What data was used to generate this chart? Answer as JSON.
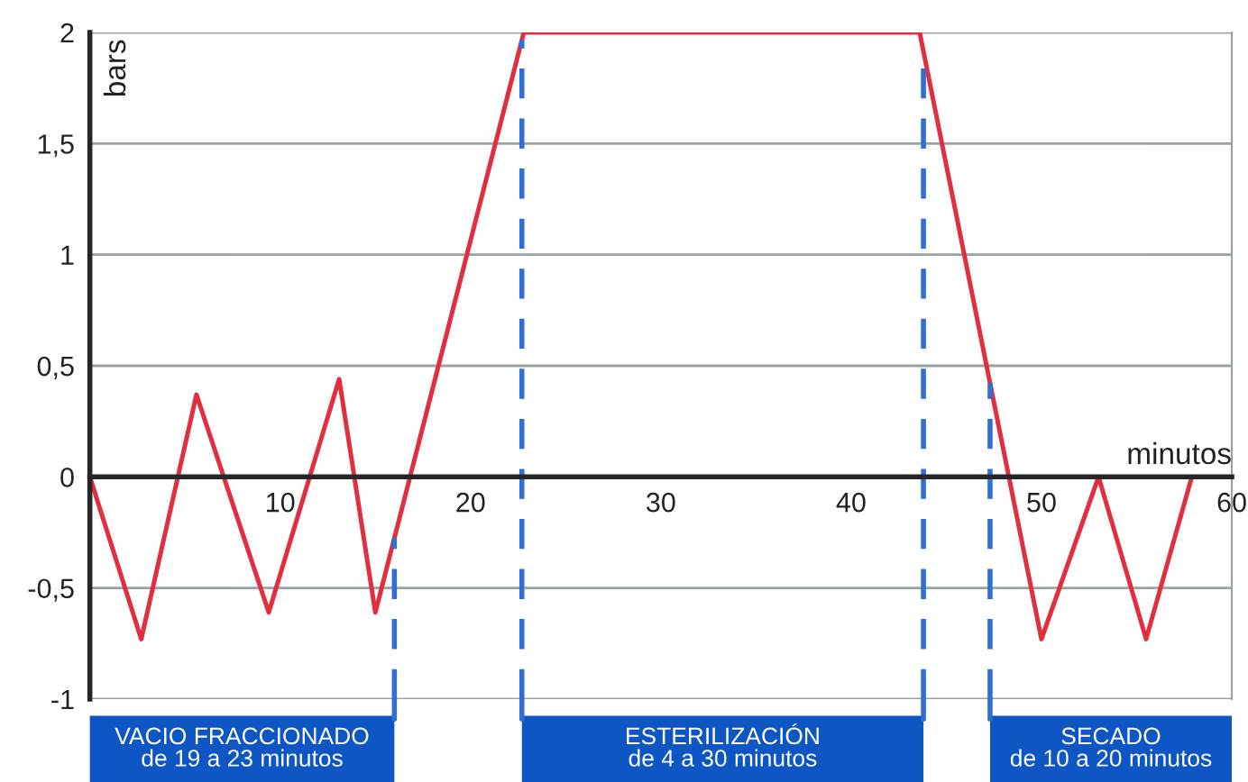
{
  "chart_data": {
    "type": "line",
    "xlabel": "minutos",
    "ylabel": "bars",
    "x": [
      0,
      2.7,
      5.6,
      9.4,
      13.1,
      15,
      22.8,
      43.6,
      50,
      53,
      55.5,
      57.9
    ],
    "series": [
      {
        "color": "#e0303f",
        "values": [
          0,
          -0.73,
          0.37,
          -0.61,
          0.44,
          -0.61,
          2,
          2,
          -0.73,
          0,
          -0.73,
          0
        ]
      }
    ],
    "xlim": [
      0,
      60
    ],
    "ylim": [
      -1,
      2
    ],
    "xticks": [
      10,
      20,
      30,
      40,
      50,
      60
    ],
    "yticks": [
      {
        "value": -1,
        "label": "-1"
      },
      {
        "value": -0.5,
        "label": "-0,5"
      },
      {
        "value": 0,
        "label": "0"
      },
      {
        "value": 0.5,
        "label": "0,5"
      },
      {
        "value": 1,
        "label": "1"
      },
      {
        "value": 1.5,
        "label": "1,5"
      },
      {
        "value": 2,
        "label": "2"
      }
    ],
    "grid": "y",
    "marker": "none",
    "line_style": "solid",
    "ref_lines": [
      {
        "axis": "x",
        "value": 16,
        "color": "#2f6fd6",
        "line_style": "dashed"
      },
      {
        "axis": "x",
        "value": 22.7,
        "color": "#2f6fd6",
        "line_style": "dashed"
      },
      {
        "axis": "x",
        "value": 43.8,
        "color": "#2f6fd6",
        "line_style": "dashed"
      },
      {
        "axis": "x",
        "value": 47.3,
        "color": "#2f6fd6",
        "line_style": "dashed"
      }
    ],
    "annotations": [
      "VACIO FRACCIONADO\nde 19 a 23 minutos",
      "ESTERILIZACIÓN\nde 4 a 30 minutos",
      "SECADO\nde 10 a 20 minutos"
    ]
  }
}
